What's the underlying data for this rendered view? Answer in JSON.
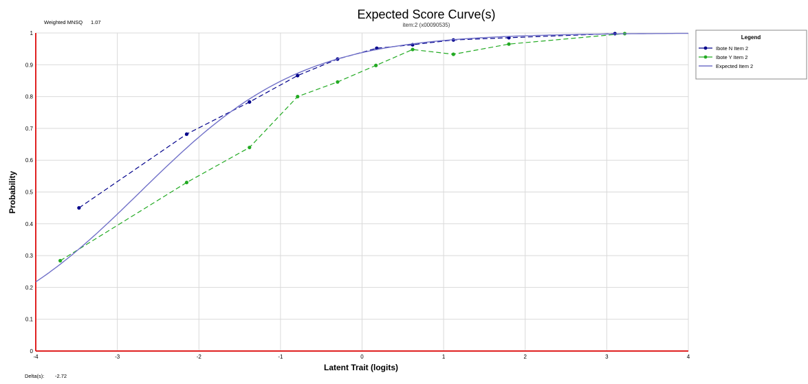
{
  "chart_data": {
    "type": "line",
    "title": "Expected Score Curve(s)",
    "subtitle": "item:2 (x00090535)",
    "xlabel": "Latent Trait (logits)",
    "ylabel": "Probability",
    "xlim": [
      -4,
      4
    ],
    "ylim": [
      0,
      1
    ],
    "x_ticks": [
      -4,
      -3,
      -2,
      -1,
      0,
      1,
      2,
      3,
      4
    ],
    "y_ticks": [
      0,
      0.1,
      0.2,
      0.3,
      0.4,
      0.5,
      0.6,
      0.7,
      0.8,
      0.9,
      1
    ],
    "x_tick_labels": [
      "-4",
      "-3",
      "-2",
      "-1",
      "0",
      "1",
      "2",
      "3",
      "4"
    ],
    "y_tick_labels": [
      "0",
      "0.1",
      "0.2",
      "0.3",
      "0.4",
      "0.5",
      "0.6",
      "0.7",
      "0.8",
      "0.9",
      "1"
    ],
    "grid": true,
    "legend_position": "top-right",
    "legend_title": "Legend",
    "series": [
      {
        "name": "Ibote N Item 2",
        "color": "#00008b",
        "style": "dashed-markers",
        "x": [
          -3.47,
          -2.15,
          -1.38,
          -0.79,
          -0.3,
          0.18,
          0.62,
          1.12,
          1.8,
          3.1
        ],
        "y": [
          0.45,
          0.682,
          0.783,
          0.866,
          0.918,
          0.952,
          0.963,
          0.978,
          0.985,
          0.998
        ]
      },
      {
        "name": "Ibote Y Item 2",
        "color": "#22aa22",
        "style": "dashed-markers",
        "x": [
          -3.7,
          -2.15,
          -1.38,
          -0.79,
          -0.3,
          0.17,
          0.62,
          1.12,
          1.8,
          3.22
        ],
        "y": [
          0.284,
          0.53,
          0.64,
          0.8,
          0.846,
          0.898,
          0.948,
          0.933,
          0.965,
          0.998
        ]
      },
      {
        "name": "Expected Item 2",
        "color": "#7070c8",
        "style": "solid",
        "curve": {
          "model": "logistic",
          "delta": -2.72
        }
      }
    ]
  },
  "stats": {
    "mnsq_label": "Weighted MNSQ",
    "mnsq_value": "1.07",
    "delta_label": "Delta(s):",
    "delta_value": "-2.72"
  }
}
